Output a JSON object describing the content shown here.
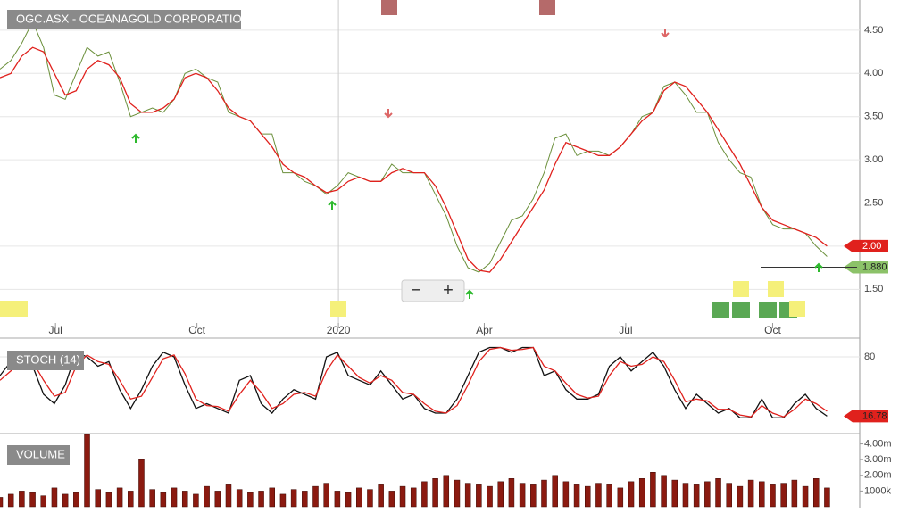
{
  "chart_data": {
    "type": "line",
    "title": "OGC.ASX - OCEANAGOLD CORPORATION",
    "xlim": [
      0,
      79
    ],
    "xticks": [
      {
        "value": 5.1,
        "label": "Jul"
      },
      {
        "value": 18.1,
        "label": "Oct"
      },
      {
        "value": 31.1,
        "label": "2020"
      },
      {
        "value": 44.5,
        "label": "Apr"
      },
      {
        "value": 57.5,
        "label": "Jul"
      },
      {
        "value": 71,
        "label": "Oct"
      }
    ],
    "x": [
      0,
      1,
      2,
      3,
      4,
      5,
      6,
      7,
      8,
      9,
      10,
      11,
      12,
      13,
      14,
      15,
      16,
      17,
      18,
      19,
      20,
      21,
      22,
      23,
      24,
      25,
      26,
      27,
      28,
      29,
      30,
      31,
      32,
      33,
      34,
      35,
      36,
      37,
      38,
      39,
      40,
      41,
      42,
      43,
      44,
      45,
      46,
      47,
      48,
      49,
      50,
      51,
      52,
      53,
      54,
      55,
      56,
      57,
      58,
      59,
      60,
      61,
      62,
      63,
      64,
      65,
      66,
      67,
      68,
      69,
      70,
      71,
      72,
      73,
      74,
      75,
      76
    ],
    "ylim": [
      1.08,
      4.85
    ],
    "yticks": [
      {
        "value": 4.5,
        "label": "4.50"
      },
      {
        "value": 4,
        "label": "4.00"
      },
      {
        "value": 3.5,
        "label": "3.50"
      },
      {
        "value": 3,
        "label": "3.00"
      },
      {
        "value": 2.5,
        "label": "2.50"
      },
      {
        "value": 2,
        "label": "2.00"
      },
      {
        "value": 1.5,
        "label": "1.50"
      }
    ],
    "grid": true,
    "series": [
      {
        "color": "#6a8f3a",
        "values": [
          4.05,
          4.15,
          4.35,
          4.6,
          4.3,
          3.75,
          3.7,
          4.0,
          4.3,
          4.2,
          4.25,
          3.9,
          3.5,
          3.55,
          3.6,
          3.55,
          3.7,
          4.0,
          4.05,
          3.95,
          3.9,
          3.55,
          3.5,
          3.45,
          3.3,
          3.3,
          2.85,
          2.85,
          2.75,
          2.7,
          2.6,
          2.7,
          2.85,
          2.8,
          2.75,
          2.75,
          2.95,
          2.85,
          2.85,
          2.85,
          2.6,
          2.35,
          2.0,
          1.75,
          1.7,
          1.8,
          2.05,
          2.3,
          2.35,
          2.55,
          2.85,
          3.25,
          3.3,
          3.05,
          3.1,
          3.1,
          3.05,
          3.15,
          3.3,
          3.5,
          3.55,
          3.85,
          3.9,
          3.75,
          3.55,
          3.55,
          3.2,
          3.0,
          2.85,
          2.8,
          2.45,
          2.25,
          2.2,
          2.2,
          2.15,
          2.0,
          1.88
        ]
      },
      {
        "color": "#e0211d",
        "values": [
          3.95,
          4.0,
          4.2,
          4.3,
          4.25,
          4.0,
          3.75,
          3.8,
          4.05,
          4.15,
          4.1,
          3.95,
          3.65,
          3.55,
          3.55,
          3.6,
          3.7,
          3.95,
          4.0,
          3.95,
          3.8,
          3.6,
          3.5,
          3.45,
          3.3,
          3.15,
          2.95,
          2.85,
          2.8,
          2.7,
          2.62,
          2.65,
          2.75,
          2.8,
          2.75,
          2.75,
          2.85,
          2.9,
          2.85,
          2.85,
          2.7,
          2.45,
          2.15,
          1.85,
          1.72,
          1.7,
          1.85,
          2.05,
          2.25,
          2.45,
          2.65,
          2.95,
          3.2,
          3.15,
          3.1,
          3.05,
          3.05,
          3.15,
          3.3,
          3.45,
          3.55,
          3.8,
          3.9,
          3.85,
          3.7,
          3.55,
          3.35,
          3.15,
          2.95,
          2.7,
          2.45,
          2.3,
          2.25,
          2.2,
          2.15,
          2.1,
          2.0
        ]
      }
    ],
    "last_price": {
      "value": 1.88,
      "label": "1.880"
    },
    "last_ma": {
      "value": 2.0,
      "label": "2.00"
    },
    "zoom_out": "−",
    "zoom_in": "+",
    "stoch": {
      "title": "STOCH (14)",
      "ylim": [
        0,
        100
      ],
      "yticks": [
        80
      ],
      "series": [
        {
          "color": "#111111",
          "values": [
            60,
            75,
            85,
            70,
            40,
            30,
            50,
            85,
            80,
            70,
            75,
            45,
            25,
            45,
            70,
            85,
            80,
            50,
            25,
            30,
            25,
            20,
            55,
            60,
            30,
            20,
            35,
            45,
            40,
            35,
            80,
            85,
            60,
            55,
            50,
            65,
            50,
            35,
            40,
            25,
            20,
            20,
            35,
            60,
            85,
            90,
            90,
            85,
            90,
            90,
            60,
            65,
            45,
            35,
            35,
            40,
            70,
            80,
            65,
            75,
            85,
            70,
            45,
            25,
            40,
            30,
            20,
            25,
            15,
            15,
            35,
            15,
            15,
            30,
            40,
            25,
            16.78
          ]
        },
        {
          "color": "#e0211d",
          "values": [
            55,
            65,
            78,
            75,
            55,
            38,
            42,
            70,
            82,
            75,
            72,
            55,
            35,
            38,
            58,
            78,
            82,
            62,
            35,
            28,
            27,
            22,
            40,
            55,
            42,
            25,
            30,
            40,
            42,
            38,
            65,
            82,
            70,
            58,
            52,
            60,
            55,
            42,
            40,
            30,
            22,
            20,
            28,
            50,
            75,
            88,
            90,
            87,
            88,
            90,
            70,
            65,
            52,
            40,
            36,
            38,
            60,
            75,
            70,
            72,
            80,
            75,
            55,
            32,
            35,
            33,
            24,
            24,
            18,
            16,
            28,
            20,
            16,
            24,
            35,
            30,
            22
          ]
        }
      ]
    },
    "volume": {
      "title": "VOLUME",
      "color": "#8b1a10",
      "ylim": [
        0,
        4.6
      ],
      "yticks": [
        {
          "value": 4,
          "label": "4.00m"
        },
        {
          "value": 3,
          "label": "3.00m"
        },
        {
          "value": 2,
          "label": "2.00m"
        },
        {
          "value": 1,
          "label": "1000k"
        }
      ],
      "values": [
        0.6,
        0.8,
        1.0,
        0.9,
        0.7,
        1.2,
        0.8,
        0.9,
        4.6,
        1.1,
        0.9,
        1.2,
        1.0,
        3.0,
        1.1,
        0.9,
        1.2,
        1.0,
        0.8,
        1.3,
        1.0,
        1.4,
        1.1,
        0.9,
        1.0,
        1.2,
        0.8,
        1.1,
        1.0,
        1.3,
        1.5,
        1.0,
        0.9,
        1.2,
        1.1,
        1.4,
        1.0,
        1.3,
        1.2,
        1.6,
        1.8,
        2.0,
        1.7,
        1.5,
        1.4,
        1.3,
        1.6,
        1.8,
        1.5,
        1.4,
        1.7,
        2.0,
        1.6,
        1.4,
        1.3,
        1.5,
        1.4,
        1.2,
        1.6,
        1.8,
        2.2,
        2.0,
        1.7,
        1.5,
        1.4,
        1.6,
        1.8,
        1.5,
        1.3,
        1.7,
        1.6,
        1.4,
        1.5,
        1.7,
        1.3,
        1.8,
        1.2
      ]
    }
  }
}
